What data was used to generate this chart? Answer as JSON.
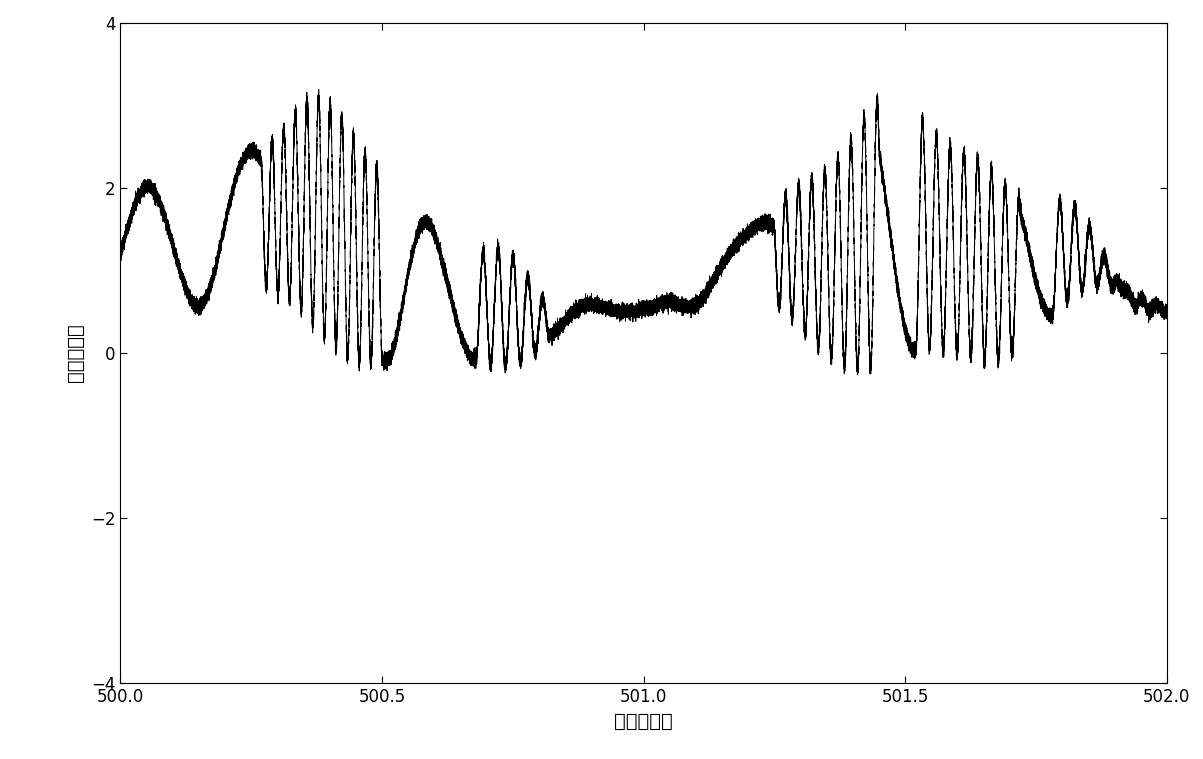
{
  "xlabel": "时间（秒）",
  "ylabel": "（次）幅値",
  "xlim": [
    500,
    502
  ],
  "ylim": [
    -4,
    4
  ],
  "xticks": [
    500,
    500.5,
    501,
    501.5,
    502
  ],
  "yticks": [
    -4,
    -2,
    0,
    2,
    4
  ],
  "line_color": "#000000",
  "bg_color": "#ffffff",
  "linewidth": 0.7,
  "figsize": [
    12.03,
    7.59
  ],
  "dpi": 100
}
